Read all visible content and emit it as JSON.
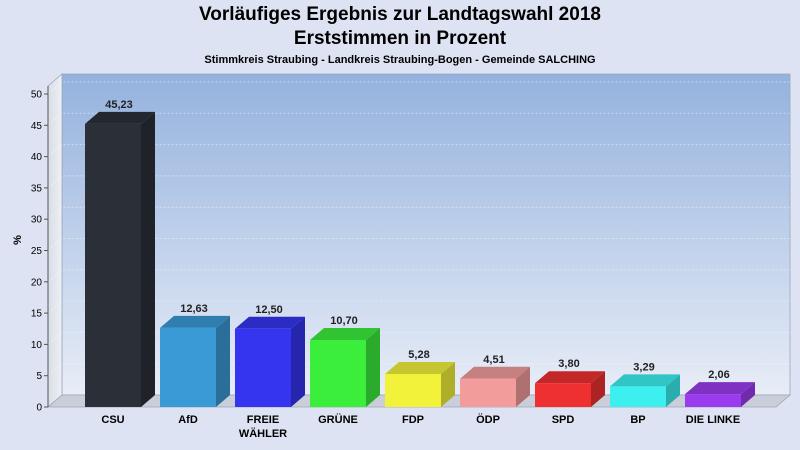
{
  "header": {
    "title_line1": "Vorläufiges Ergebnis zur Landtagswahl 2018",
    "title_line2": "Erststimmen in Prozent",
    "subtitle": "Stimmkreis Straubing - Landkreis Straubing-Bogen - Gemeinde SALCHING"
  },
  "chart_data": {
    "type": "bar",
    "title": "Vorläufiges Ergebnis zur Landtagswahl 2018 Erststimmen in Prozent",
    "subtitle": "Stimmkreis Straubing - Landkreis Straubing-Bogen - Gemeinde SALCHING",
    "xlabel": "",
    "ylabel": "%",
    "ylim": [
      0,
      50
    ],
    "yticks": [
      0,
      5,
      10,
      15,
      20,
      25,
      30,
      35,
      40,
      45,
      50
    ],
    "grid": true,
    "categories": [
      "CSU",
      "AfD",
      "FREIE WÄHLER",
      "GRÜNE",
      "FDP",
      "ÖDP",
      "SPD",
      "BP",
      "DIE LINKE"
    ],
    "category_lines": [
      [
        "CSU"
      ],
      [
        "AfD"
      ],
      [
        "FREIE",
        "WÄHLER"
      ],
      [
        "GRÜNE"
      ],
      [
        "FDP"
      ],
      [
        "ÖDP"
      ],
      [
        "SPD"
      ],
      [
        "BP"
      ],
      [
        "DIE LINKE"
      ]
    ],
    "values": [
      45.23,
      12.63,
      12.5,
      10.7,
      5.28,
      4.51,
      3.8,
      3.29,
      2.06
    ],
    "value_labels": [
      "45,23",
      "12,63",
      "12,50",
      "10,70",
      "5,28",
      "4,51",
      "3,80",
      "3,29",
      "2,06"
    ],
    "colors": [
      "#2b2f38",
      "#3a9ad6",
      "#3535f0",
      "#3cee3c",
      "#f2f23a",
      "#f29c9c",
      "#ee3030",
      "#3cf0f0",
      "#9a3cee"
    ]
  }
}
